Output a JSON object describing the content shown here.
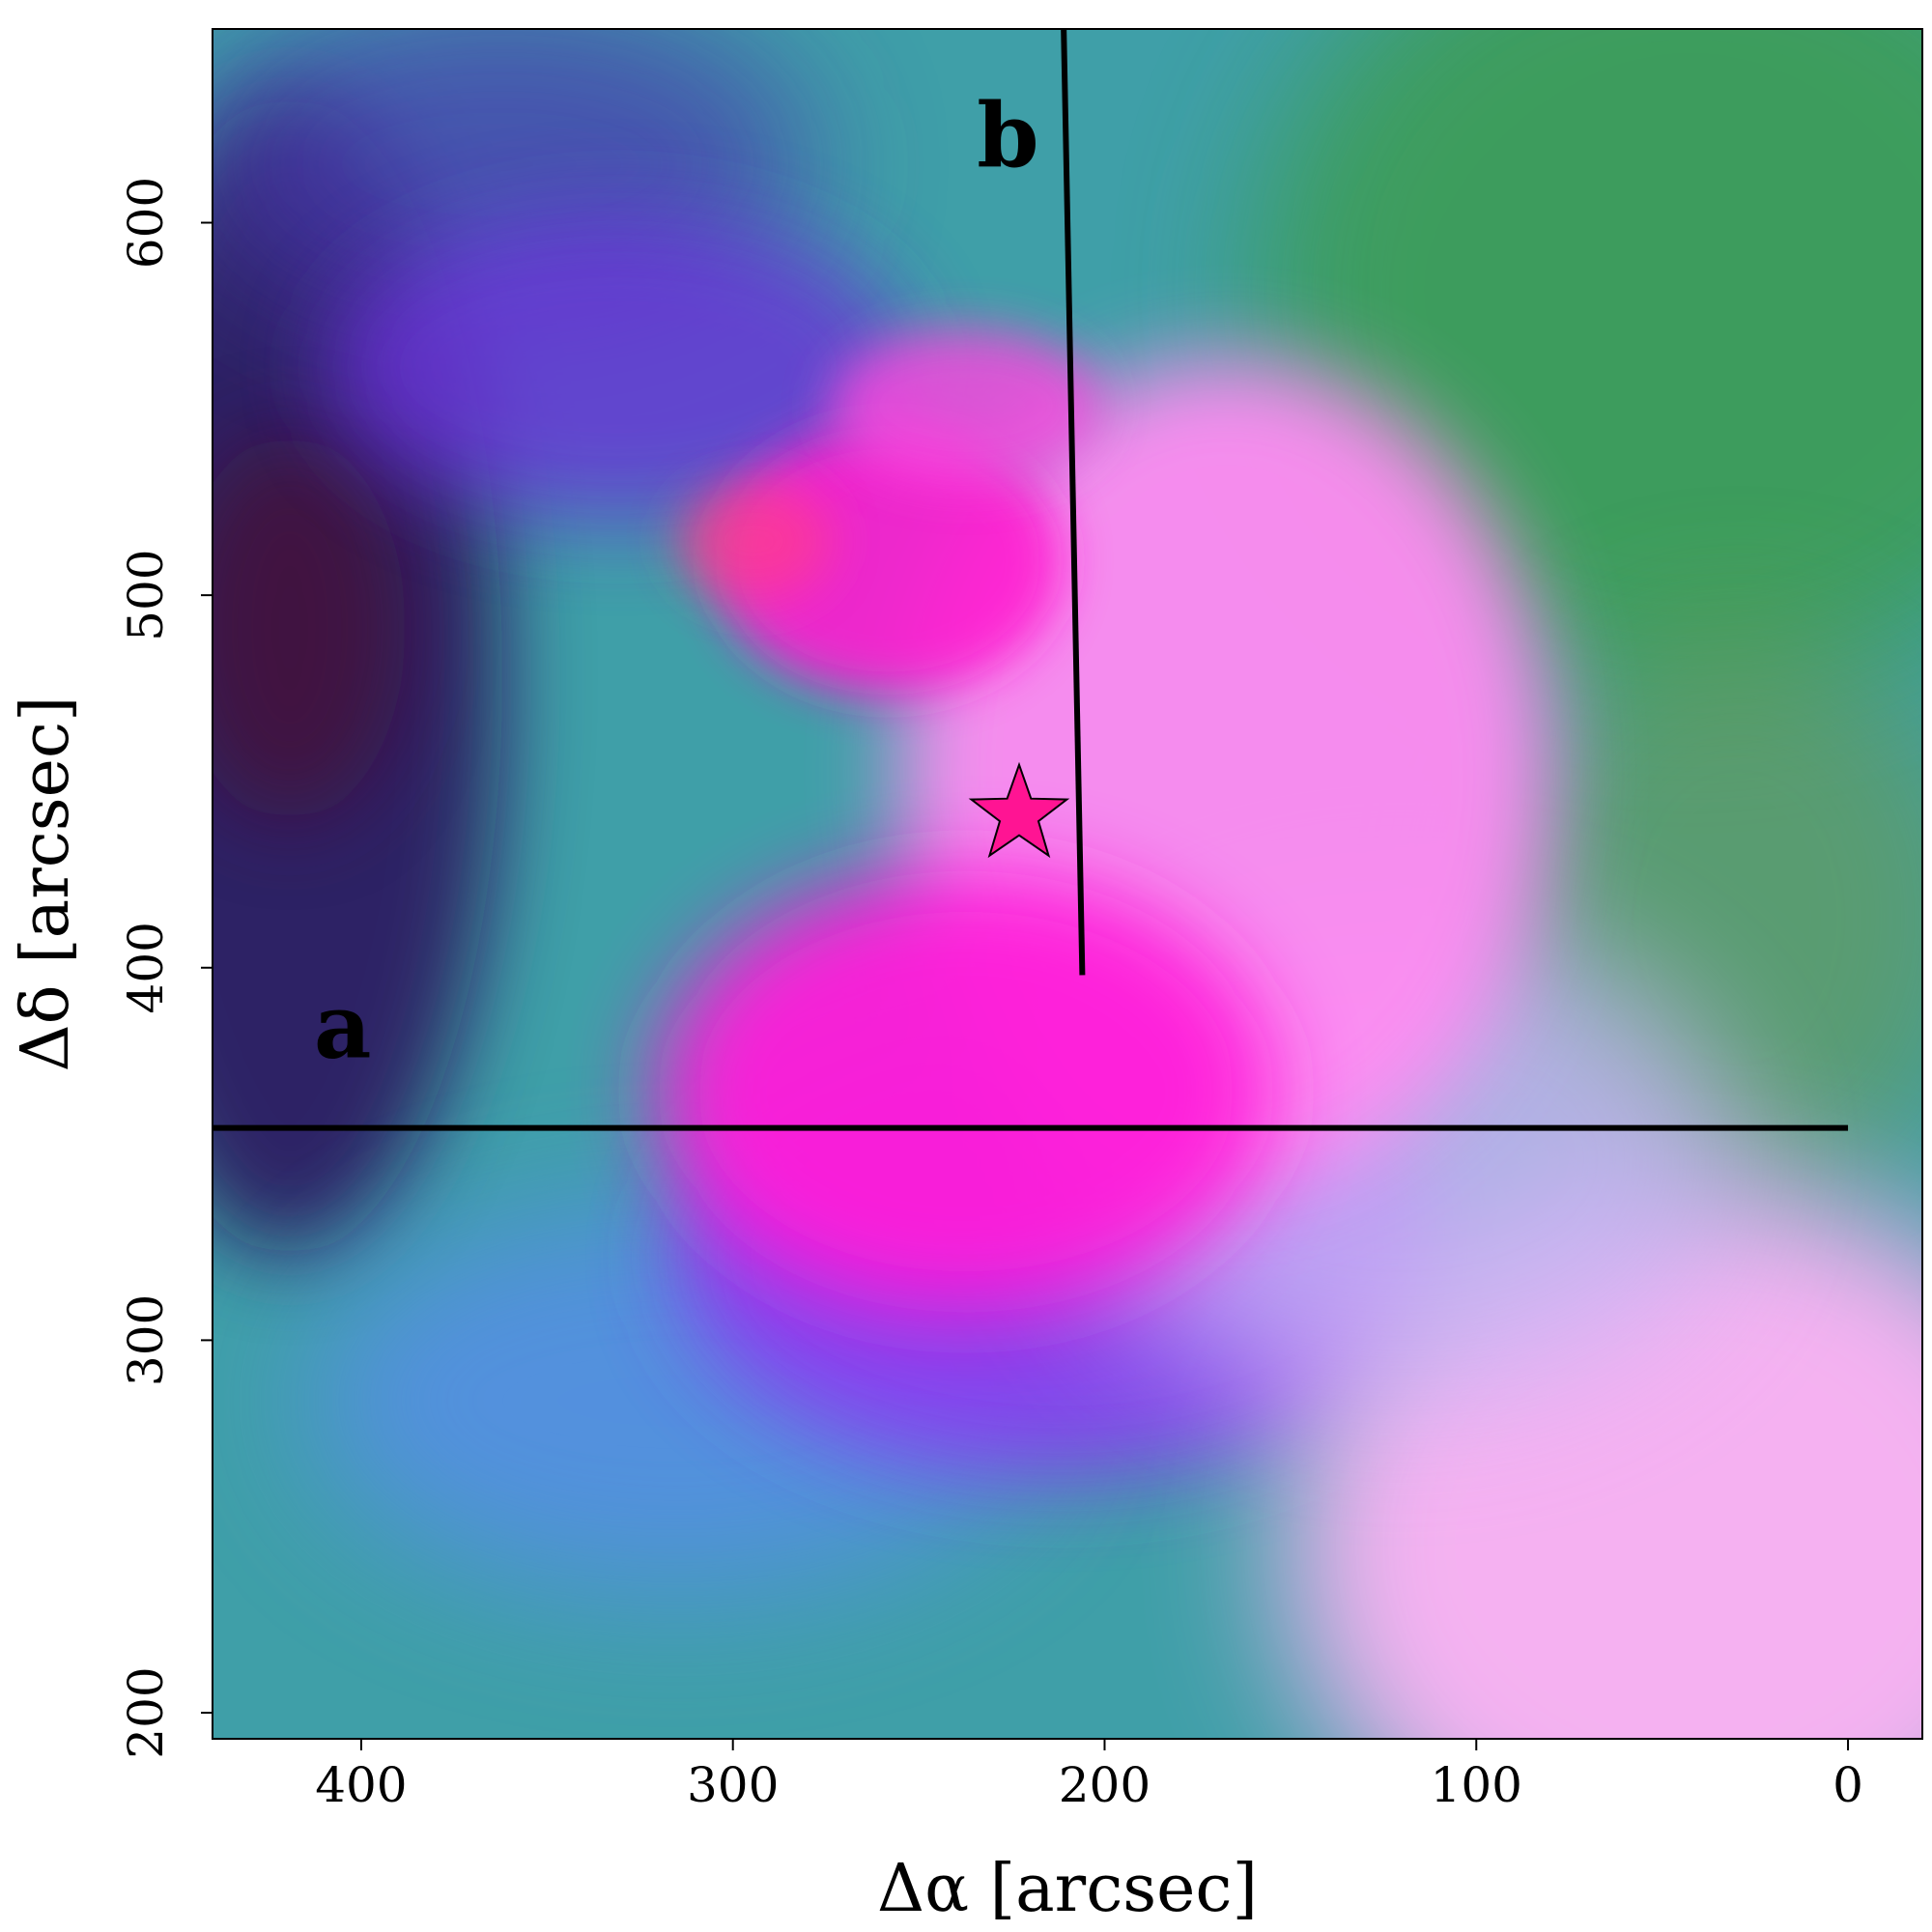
{
  "chart_data": {
    "type": "image",
    "description_axes": true,
    "xlabel": "Δα [arcsec]",
    "ylabel": "Δδ [arcsec]",
    "xlim": [
      440,
      -20
    ],
    "ylim": [
      193,
      652
    ],
    "xticks": [
      400,
      300,
      200,
      100,
      0
    ],
    "yticks": [
      200,
      300,
      400,
      500,
      600
    ],
    "x_inverted": true,
    "cut_lines": [
      {
        "label": "a",
        "x0": 440,
        "y0": 357,
        "x1": 0,
        "y1": 357
      },
      {
        "label": "b",
        "x0": 211,
        "y0": 652,
        "x1": 206,
        "y1": 398
      }
    ],
    "cut_label_positions": [
      {
        "label": "a",
        "x": 405,
        "y": 376
      },
      {
        "label": "b",
        "x": 226,
        "y": 615
      }
    ],
    "marker": {
      "symbol": "star",
      "x": 223,
      "y": 441,
      "color": "#ff1493"
    },
    "colors": {
      "background_teal": "#3f9fa8",
      "magenta_core": "#ff33dd",
      "pink_shell": "#ff8cf2",
      "violet": "#8a3cf0",
      "dark_region": "#2a0f5a",
      "green_region": "#3e9c45",
      "line": "#000000"
    }
  }
}
